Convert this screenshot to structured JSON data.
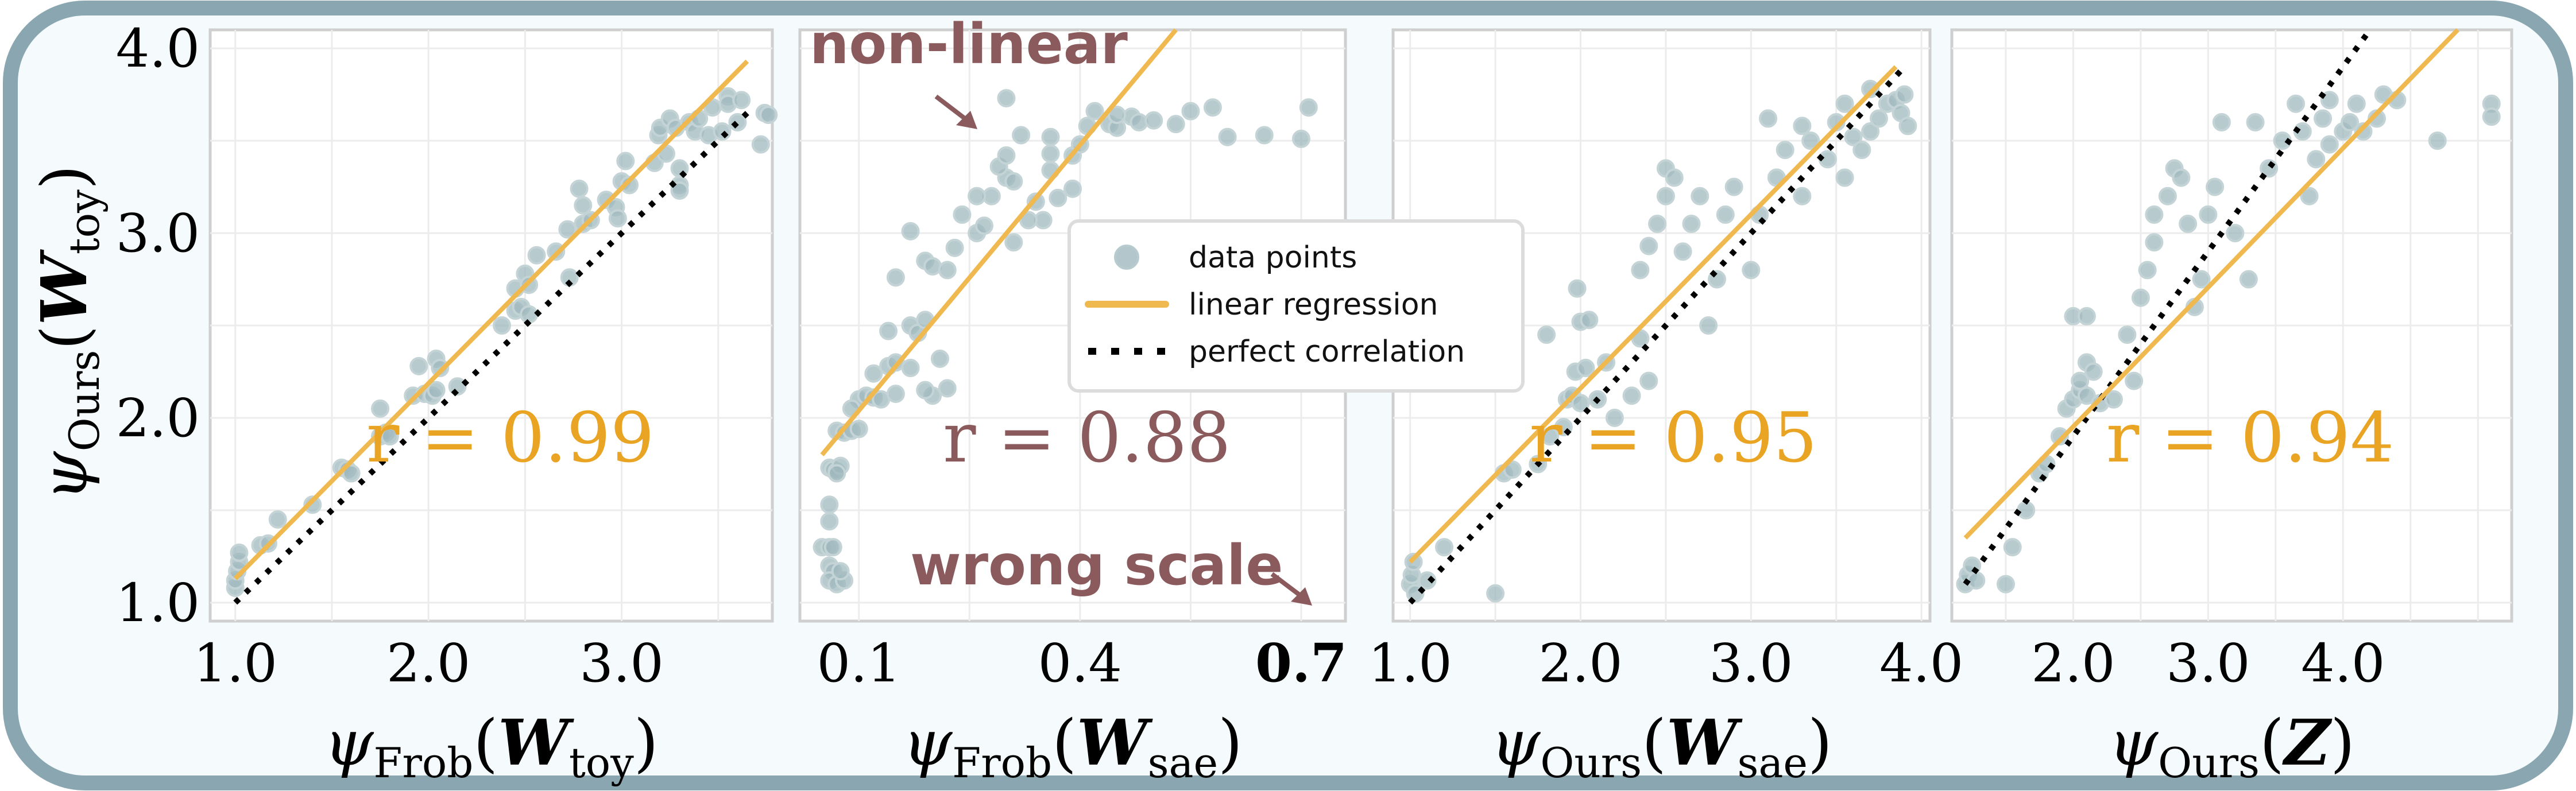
{
  "colors": {
    "frame": "#8aa7b1",
    "bg": "#f5fbfc",
    "points": "#9fb8be",
    "regression": "#efb94f",
    "perfect": "#000000",
    "good": "#e9a423",
    "bad": "#8b5a5c"
  },
  "legend": {
    "items": [
      "data points",
      "linear regression",
      "perfect correlation"
    ]
  },
  "annotations": {
    "non_linear": "non-linear",
    "wrong_scale": "wrong scale"
  },
  "chart_data": [
    {
      "type": "scatter",
      "xlabel": {
        "psi": "ψ",
        "sub": "Frob",
        "W": "W",
        "wsub": "toy"
      },
      "ylabel": {
        "psi": "ψ",
        "sub": "Ours",
        "W": "W",
        "wsub": "toy"
      },
      "xlim": [
        0.87,
        3.78
      ],
      "ylim": [
        0.9,
        4.1
      ],
      "xticks": [
        "1.0",
        "2.0",
        "3.0"
      ],
      "xtick_values": [
        1,
        2,
        3
      ],
      "yticks": [
        "1.0",
        "2.0",
        "3.0",
        "4.0"
      ],
      "ytick_values": [
        1,
        2,
        3,
        4
      ],
      "r_label": "r = 0.99",
      "r_status": "good",
      "regression": [
        [
          1.0,
          1.13
        ],
        [
          3.65,
          3.93
        ]
      ],
      "perfect": [
        [
          1.0,
          1.0
        ],
        [
          3.65,
          3.65
        ]
      ],
      "points": [
        [
          1.0,
          1.08
        ],
        [
          1.0,
          1.12
        ],
        [
          1.01,
          1.17
        ],
        [
          1.02,
          1.22
        ],
        [
          1.02,
          1.27
        ],
        [
          1.13,
          1.31
        ],
        [
          1.17,
          1.32
        ],
        [
          1.22,
          1.45
        ],
        [
          1.4,
          1.53
        ],
        [
          1.55,
          1.73
        ],
        [
          1.58,
          1.72
        ],
        [
          1.6,
          1.7
        ],
        [
          1.75,
          1.9
        ],
        [
          1.78,
          1.92
        ],
        [
          1.8,
          1.9
        ],
        [
          1.75,
          2.05
        ],
        [
          1.92,
          2.12
        ],
        [
          1.95,
          2.28
        ],
        [
          1.98,
          2.13
        ],
        [
          2.02,
          2.12
        ],
        [
          2.04,
          2.15
        ],
        [
          2.04,
          2.32
        ],
        [
          2.06,
          2.27
        ],
        [
          2.15,
          2.17
        ],
        [
          2.38,
          2.5
        ],
        [
          2.45,
          2.58
        ],
        [
          2.48,
          2.6
        ],
        [
          2.52,
          2.56
        ],
        [
          2.45,
          2.7
        ],
        [
          2.5,
          2.78
        ],
        [
          2.52,
          2.72
        ],
        [
          2.56,
          2.88
        ],
        [
          2.66,
          2.9
        ],
        [
          2.72,
          3.02
        ],
        [
          2.73,
          2.76
        ],
        [
          2.78,
          3.24
        ],
        [
          2.8,
          3.15
        ],
        [
          2.8,
          3.05
        ],
        [
          2.84,
          3.07
        ],
        [
          2.92,
          3.18
        ],
        [
          2.97,
          3.14
        ],
        [
          2.98,
          3.08
        ],
        [
          3.0,
          3.28
        ],
        [
          3.04,
          3.26
        ],
        [
          3.02,
          3.39
        ],
        [
          3.17,
          3.38
        ],
        [
          3.19,
          3.53
        ],
        [
          3.2,
          3.57
        ],
        [
          3.23,
          3.43
        ],
        [
          3.25,
          3.62
        ],
        [
          3.28,
          3.57
        ],
        [
          3.3,
          3.26
        ],
        [
          3.3,
          3.23
        ],
        [
          3.3,
          3.35
        ],
        [
          3.35,
          3.6
        ],
        [
          3.38,
          3.55
        ],
        [
          3.4,
          3.62
        ],
        [
          3.45,
          3.53
        ],
        [
          3.47,
          3.68
        ],
        [
          3.52,
          3.55
        ],
        [
          3.55,
          3.74
        ],
        [
          3.55,
          3.7
        ],
        [
          3.6,
          3.6
        ],
        [
          3.62,
          3.72
        ],
        [
          3.72,
          3.48
        ],
        [
          3.74,
          3.65
        ],
        [
          3.76,
          3.64
        ]
      ]
    },
    {
      "type": "scatter",
      "xlabel": {
        "psi": "ψ",
        "sub": "Frob",
        "W": "W",
        "wsub": "sae"
      },
      "xlim": [
        0.02,
        0.76
      ],
      "ylim": [
        0.9,
        4.1
      ],
      "xticks": [
        "0.1",
        "0.4",
        "0.7"
      ],
      "xtick_values": [
        0.1,
        0.4,
        0.7
      ],
      "highlight_tick": "0.7",
      "r_label": "r = 0.88",
      "r_status": "bad",
      "regression": [
        [
          0.05,
          1.8
        ],
        [
          0.53,
          4.1
        ]
      ],
      "points": [
        [
          0.06,
          1.73
        ],
        [
          0.065,
          1.72
        ],
        [
          0.07,
          1.71
        ],
        [
          0.075,
          1.74
        ],
        [
          0.07,
          1.7
        ],
        [
          0.06,
          1.53
        ],
        [
          0.06,
          1.44
        ],
        [
          0.05,
          1.3
        ],
        [
          0.06,
          1.3
        ],
        [
          0.065,
          1.3
        ],
        [
          0.06,
          1.2
        ],
        [
          0.065,
          1.17
        ],
        [
          0.06,
          1.12
        ],
        [
          0.07,
          1.1
        ],
        [
          0.08,
          1.12
        ],
        [
          0.075,
          1.17
        ],
        [
          0.07,
          1.93
        ],
        [
          0.08,
          1.92
        ],
        [
          0.09,
          1.93
        ],
        [
          0.1,
          1.94
        ],
        [
          0.1,
          2.1
        ],
        [
          0.09,
          2.05
        ],
        [
          0.11,
          2.12
        ],
        [
          0.12,
          2.11
        ],
        [
          0.13,
          2.1
        ],
        [
          0.15,
          2.13
        ],
        [
          0.12,
          2.24
        ],
        [
          0.14,
          2.28
        ],
        [
          0.15,
          2.3
        ],
        [
          0.17,
          2.27
        ],
        [
          0.2,
          2.12
        ],
        [
          0.19,
          2.15
        ],
        [
          0.22,
          2.16
        ],
        [
          0.21,
          2.32
        ],
        [
          0.14,
          2.47
        ],
        [
          0.17,
          2.5
        ],
        [
          0.18,
          2.46
        ],
        [
          0.19,
          2.53
        ],
        [
          0.15,
          2.76
        ],
        [
          0.19,
          2.85
        ],
        [
          0.2,
          2.82
        ],
        [
          0.22,
          2.8
        ],
        [
          0.23,
          2.92
        ],
        [
          0.17,
          3.01
        ],
        [
          0.24,
          3.1
        ],
        [
          0.26,
          3.0
        ],
        [
          0.27,
          3.04
        ],
        [
          0.28,
          3.2
        ],
        [
          0.31,
          2.95
        ],
        [
          0.35,
          3.07
        ],
        [
          0.26,
          3.2
        ],
        [
          0.3,
          3.3
        ],
        [
          0.33,
          3.07
        ],
        [
          0.34,
          3.17
        ],
        [
          0.31,
          3.28
        ],
        [
          0.29,
          3.36
        ],
        [
          0.3,
          3.42
        ],
        [
          0.37,
          3.19
        ],
        [
          0.39,
          3.24
        ],
        [
          0.36,
          3.34
        ],
        [
          0.36,
          3.43
        ],
        [
          0.32,
          3.53
        ],
        [
          0.39,
          3.42
        ],
        [
          0.4,
          3.48
        ],
        [
          0.36,
          3.52
        ],
        [
          0.41,
          3.58
        ],
        [
          0.44,
          3.59
        ],
        [
          0.45,
          3.57
        ],
        [
          0.47,
          3.63
        ],
        [
          0.48,
          3.6
        ],
        [
          0.5,
          3.61
        ],
        [
          0.53,
          3.59
        ],
        [
          0.55,
          3.66
        ],
        [
          0.58,
          3.68
        ],
        [
          0.6,
          3.52
        ],
        [
          0.65,
          3.53
        ],
        [
          0.7,
          3.51
        ],
        [
          0.71,
          3.68
        ],
        [
          0.45,
          3.64
        ],
        [
          0.42,
          3.66
        ],
        [
          0.3,
          3.73
        ]
      ]
    },
    {
      "type": "scatter",
      "xlabel": {
        "psi": "ψ",
        "sub": "Ours",
        "W": "W",
        "wsub": "sae"
      },
      "xlim": [
        0.9,
        4.05
      ],
      "ylim": [
        0.9,
        4.1
      ],
      "xticks": [
        "1.0",
        "2.0",
        "3.0",
        "4.0"
      ],
      "xtick_values": [
        1,
        2,
        3,
        4
      ],
      "r_label": "r = 0.95",
      "r_status": "good",
      "regression": [
        [
          1.0,
          1.22
        ],
        [
          3.85,
          3.9
        ]
      ],
      "perfect": [
        [
          1.0,
          1.0
        ],
        [
          3.88,
          3.88
        ]
      ],
      "points": [
        [
          1.0,
          1.1
        ],
        [
          1.01,
          1.15
        ],
        [
          1.02,
          1.22
        ],
        [
          1.03,
          1.05
        ],
        [
          1.1,
          1.12
        ],
        [
          1.2,
          1.3
        ],
        [
          1.5,
          1.05
        ],
        [
          1.55,
          1.7
        ],
        [
          1.6,
          1.72
        ],
        [
          1.75,
          1.75
        ],
        [
          1.82,
          1.9
        ],
        [
          1.9,
          1.95
        ],
        [
          1.92,
          2.1
        ],
        [
          1.95,
          2.12
        ],
        [
          1.97,
          2.25
        ],
        [
          2.0,
          2.08
        ],
        [
          2.03,
          2.27
        ],
        [
          2.1,
          2.1
        ],
        [
          2.15,
          2.3
        ],
        [
          2.2,
          2.0
        ],
        [
          1.98,
          2.7
        ],
        [
          2.0,
          2.52
        ],
        [
          2.05,
          2.53
        ],
        [
          1.8,
          2.45
        ],
        [
          2.3,
          2.12
        ],
        [
          2.35,
          2.43
        ],
        [
          2.4,
          2.2
        ],
        [
          2.35,
          2.8
        ],
        [
          2.4,
          2.93
        ],
        [
          2.45,
          3.05
        ],
        [
          2.5,
          3.2
        ],
        [
          2.5,
          3.35
        ],
        [
          2.55,
          3.3
        ],
        [
          2.6,
          2.9
        ],
        [
          2.65,
          3.05
        ],
        [
          2.7,
          3.2
        ],
        [
          2.75,
          2.5
        ],
        [
          2.8,
          2.75
        ],
        [
          2.85,
          3.1
        ],
        [
          2.9,
          3.25
        ],
        [
          3.0,
          2.8
        ],
        [
          3.05,
          3.1
        ],
        [
          3.1,
          3.62
        ],
        [
          3.15,
          3.3
        ],
        [
          3.2,
          3.45
        ],
        [
          3.3,
          3.2
        ],
        [
          3.35,
          3.5
        ],
        [
          3.45,
          3.4
        ],
        [
          3.5,
          3.6
        ],
        [
          3.55,
          3.7
        ],
        [
          3.6,
          3.52
        ],
        [
          3.65,
          3.45
        ],
        [
          3.7,
          3.55
        ],
        [
          3.75,
          3.62
        ],
        [
          3.8,
          3.7
        ],
        [
          3.85,
          3.72
        ],
        [
          3.88,
          3.65
        ],
        [
          3.9,
          3.75
        ],
        [
          3.92,
          3.58
        ],
        [
          3.7,
          3.78
        ],
        [
          3.3,
          3.58
        ],
        [
          3.55,
          3.3
        ]
      ]
    },
    {
      "type": "scatter",
      "xlabel": {
        "psi": "ψ",
        "sub": "Ours",
        "W": "Z"
      },
      "xlim": [
        1.1,
        5.25
      ],
      "ylim": [
        0.9,
        4.1
      ],
      "xticks": [
        "2.0",
        "3.0",
        "4.0"
      ],
      "xtick_values": [
        2,
        3,
        4
      ],
      "r_label": "r = 0.94",
      "r_status": "good",
      "regression": [
        [
          1.2,
          1.35
        ],
        [
          4.85,
          4.1
        ]
      ],
      "perfect": [
        [
          1.2,
          1.1
        ],
        [
          4.2,
          4.1
        ]
      ],
      "points": [
        [
          1.2,
          1.1
        ],
        [
          1.22,
          1.15
        ],
        [
          1.25,
          1.2
        ],
        [
          1.28,
          1.12
        ],
        [
          1.5,
          1.1
        ],
        [
          1.55,
          1.3
        ],
        [
          1.65,
          1.5
        ],
        [
          1.75,
          1.7
        ],
        [
          1.8,
          1.75
        ],
        [
          1.9,
          1.9
        ],
        [
          1.95,
          2.05
        ],
        [
          2.0,
          2.1
        ],
        [
          2.05,
          2.15
        ],
        [
          2.1,
          2.12
        ],
        [
          2.1,
          2.3
        ],
        [
          2.15,
          2.25
        ],
        [
          2.2,
          2.08
        ],
        [
          2.0,
          2.55
        ],
        [
          2.1,
          2.55
        ],
        [
          2.05,
          2.2
        ],
        [
          2.3,
          2.1
        ],
        [
          2.4,
          2.45
        ],
        [
          2.45,
          2.2
        ],
        [
          2.5,
          2.65
        ],
        [
          2.55,
          2.8
        ],
        [
          2.6,
          2.95
        ],
        [
          2.6,
          3.1
        ],
        [
          2.7,
          3.2
        ],
        [
          2.75,
          3.35
        ],
        [
          2.8,
          3.3
        ],
        [
          2.85,
          3.05
        ],
        [
          2.9,
          2.6
        ],
        [
          2.95,
          2.75
        ],
        [
          3.0,
          3.1
        ],
        [
          3.05,
          3.25
        ],
        [
          3.1,
          3.6
        ],
        [
          3.2,
          3.0
        ],
        [
          3.3,
          2.75
        ],
        [
          3.35,
          3.6
        ],
        [
          3.45,
          3.35
        ],
        [
          3.55,
          3.5
        ],
        [
          3.65,
          3.7
        ],
        [
          3.7,
          3.55
        ],
        [
          3.75,
          3.2
        ],
        [
          3.8,
          3.4
        ],
        [
          3.85,
          3.62
        ],
        [
          3.9,
          3.72
        ],
        [
          4.0,
          3.55
        ],
        [
          4.05,
          3.6
        ],
        [
          4.1,
          3.7
        ],
        [
          4.15,
          3.55
        ],
        [
          4.25,
          3.62
        ],
        [
          4.3,
          3.75
        ],
        [
          4.4,
          3.72
        ],
        [
          4.7,
          3.5
        ],
        [
          5.1,
          3.7
        ],
        [
          5.1,
          3.63
        ],
        [
          3.9,
          3.48
        ]
      ]
    }
  ]
}
